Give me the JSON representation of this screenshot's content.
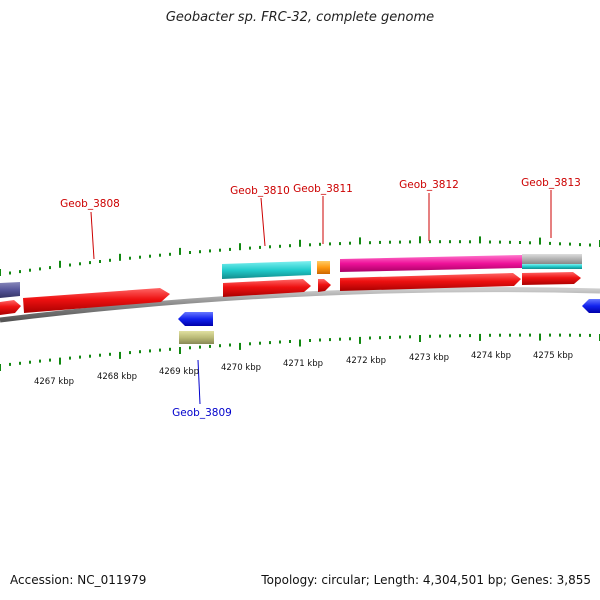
{
  "title": "Geobacter sp. FRC-32, complete genome",
  "footer": {
    "accession": "Accession: NC_011979",
    "topology": "Topology: circular; Length: 4,304,501 bp; Genes: 3,855"
  },
  "colors": {
    "tick": "#118811",
    "backbone": "#8c8c8c",
    "label_forward": "#cc0000",
    "label_reverse": "#0000cc"
  },
  "kbp_labels": [
    "4267 kbp",
    "4268 kbp",
    "4269 kbp",
    "4270 kbp",
    "4271 kbp",
    "4272 kbp",
    "4273 kbp",
    "4274 kbp",
    "4275 kbp"
  ],
  "gene_labels": [
    "Geob_3808",
    "Geob_3809",
    "Geob_3810",
    "Geob_3811",
    "Geob_3812",
    "Geob_3813"
  ]
}
